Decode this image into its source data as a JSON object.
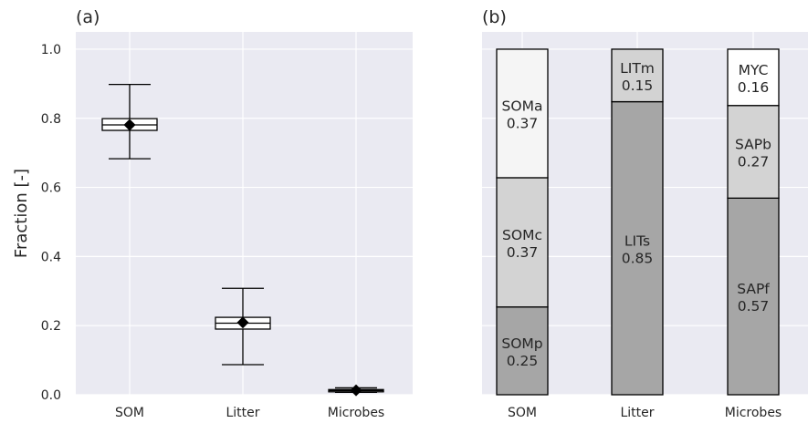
{
  "chart_data": [
    {
      "type": "box",
      "panel_label": "(a)",
      "ylabel": "Fraction [-]",
      "ylim": [
        0,
        1.05
      ],
      "yticks": [
        0.0,
        0.2,
        0.4,
        0.6,
        0.8,
        1.0
      ],
      "ytick_labels": [
        "0.0",
        "0.2",
        "0.4",
        "0.6",
        "0.8",
        "1.0"
      ],
      "categories": [
        "SOM",
        "Litter",
        "Microbes"
      ],
      "boxes": [
        {
          "whisker_low": 0.683,
          "q1": 0.765,
          "median": 0.781,
          "q3": 0.799,
          "whisker_high": 0.898,
          "mean": 0.781
        },
        {
          "whisker_low": 0.087,
          "q1": 0.19,
          "median": 0.207,
          "q3": 0.224,
          "whisker_high": 0.308,
          "mean": 0.209
        },
        {
          "whisker_low": 0.007,
          "q1": 0.009,
          "median": 0.012,
          "q3": 0.015,
          "whisker_high": 0.02,
          "mean": 0.013
        }
      ],
      "grid": true
    },
    {
      "type": "stacked-bar",
      "panel_label": "(b)",
      "categories": [
        "SOM",
        "Litter",
        "Microbes"
      ],
      "ylim": [
        0,
        1.05
      ],
      "stacks": [
        {
          "segments": [
            {
              "name": "SOMp",
              "label": "0.25",
              "value": 0.254,
              "color": "#a6a6a6"
            },
            {
              "name": "SOMc",
              "label": "0.37",
              "value": 0.374,
              "color": "#d3d3d3"
            },
            {
              "name": "SOMa",
              "label": "0.37",
              "value": 0.372,
              "color": "#f5f5f5"
            }
          ]
        },
        {
          "segments": [
            {
              "name": "LITs",
              "label": "0.85",
              "value": 0.848,
              "color": "#a6a6a6"
            },
            {
              "name": "LITm",
              "label": "0.15",
              "value": 0.152,
              "color": "#d3d3d3"
            }
          ]
        },
        {
          "segments": [
            {
              "name": "SAPf",
              "label": "0.57",
              "value": 0.569,
              "color": "#a6a6a6"
            },
            {
              "name": "SAPb",
              "label": "0.27",
              "value": 0.268,
              "color": "#d3d3d3"
            },
            {
              "name": "MYC",
              "label": "0.16",
              "value": 0.163,
              "color": "#ffffff"
            }
          ]
        }
      ],
      "grid": true
    }
  ]
}
